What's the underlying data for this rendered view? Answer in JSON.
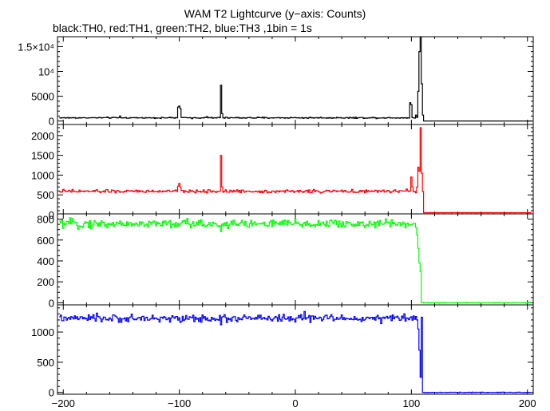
{
  "title": "WAM T2 Lightcurve (y−axis: Counts)",
  "subtitle": "black:TH0, red:TH1, green:TH2, blue:TH3 ,1bin = 1s",
  "chart_data": {
    "type": "line",
    "x_range": [
      -205,
      205
    ],
    "x_ticks": [
      -200,
      -100,
      0,
      100,
      200
    ],
    "x_tick_labels": [
      "−200",
      "−100",
      "0",
      "100",
      "200"
    ],
    "x_minor_step": 20,
    "grid": false,
    "panels": [
      {
        "id": "TH0",
        "color": "#000000",
        "y_range": [
          -700,
          17000
        ],
        "y_ticks": [
          0,
          5000,
          10000,
          15000
        ],
        "y_tick_labels": [
          "0",
          "5000",
          "10⁴",
          "1.5×10⁴"
        ],
        "y_minor_step": 1000,
        "baseline": 650,
        "noise": 60,
        "drop_x": null,
        "tail_value": 0,
        "features": [
          [
            -151,
            1000
          ],
          [
            -101,
            2800
          ],
          [
            -100,
            3000
          ],
          [
            -99,
            2500
          ],
          [
            -76,
            900
          ],
          [
            -64,
            7200
          ],
          [
            -63,
            1500
          ],
          [
            99,
            3700
          ],
          [
            100,
            3300
          ],
          [
            104,
            1200
          ],
          [
            106,
            6000
          ],
          [
            107,
            14000
          ],
          [
            108,
            16800
          ],
          [
            109,
            7500
          ],
          [
            110,
            1200
          ]
        ]
      },
      {
        "id": "TH1",
        "color": "#ff0000",
        "y_range": [
          20,
          2280
        ],
        "y_ticks": [
          0,
          500,
          1000,
          1500,
          2000
        ],
        "y_tick_labels": [
          "0",
          "500",
          "1000",
          "1500",
          "2000"
        ],
        "y_minor_step": 100,
        "baseline": 590,
        "noise": 20,
        "drop_x": 110,
        "tail_value": 50,
        "features": [
          [
            -101,
            720
          ],
          [
            -100,
            790
          ],
          [
            -99,
            700
          ],
          [
            -64,
            1500
          ],
          [
            -63,
            700
          ],
          [
            99,
            600
          ],
          [
            100,
            950
          ],
          [
            101,
            700
          ],
          [
            105,
            700
          ],
          [
            106,
            1200
          ],
          [
            107,
            1100
          ],
          [
            108,
            2200
          ],
          [
            109,
            1050
          ]
        ]
      },
      {
        "id": "TH2",
        "color": "#00ff00",
        "y_range": [
          -20,
          850
        ],
        "y_ticks": [
          0,
          200,
          400,
          600,
          800
        ],
        "y_tick_labels": [
          "0",
          "200",
          "400",
          "600",
          "800"
        ],
        "y_minor_step": 50,
        "baseline": 755,
        "noise": 22,
        "drop_x": 108,
        "tail_value": 0,
        "features": [
          [
            -64,
            680
          ],
          [
            103,
            760
          ],
          [
            104,
            720
          ],
          [
            105,
            650
          ],
          [
            106,
            520
          ],
          [
            107,
            380
          ],
          [
            108,
            300
          ]
        ]
      },
      {
        "id": "TH3",
        "color": "#0000ff",
        "y_range": [
          -30,
          1450
        ],
        "y_ticks": [
          0,
          500,
          1000
        ],
        "y_tick_labels": [
          "0",
          "500",
          "1000"
        ],
        "y_minor_step": 100,
        "baseline": 1225,
        "noise": 30,
        "drop_x": 109,
        "tail_value": 0,
        "features": [
          [
            -64,
            1120
          ],
          [
            8,
            1340
          ],
          [
            105,
            1200
          ],
          [
            106,
            1050
          ],
          [
            107,
            700
          ],
          [
            108,
            250
          ]
        ]
      }
    ]
  }
}
